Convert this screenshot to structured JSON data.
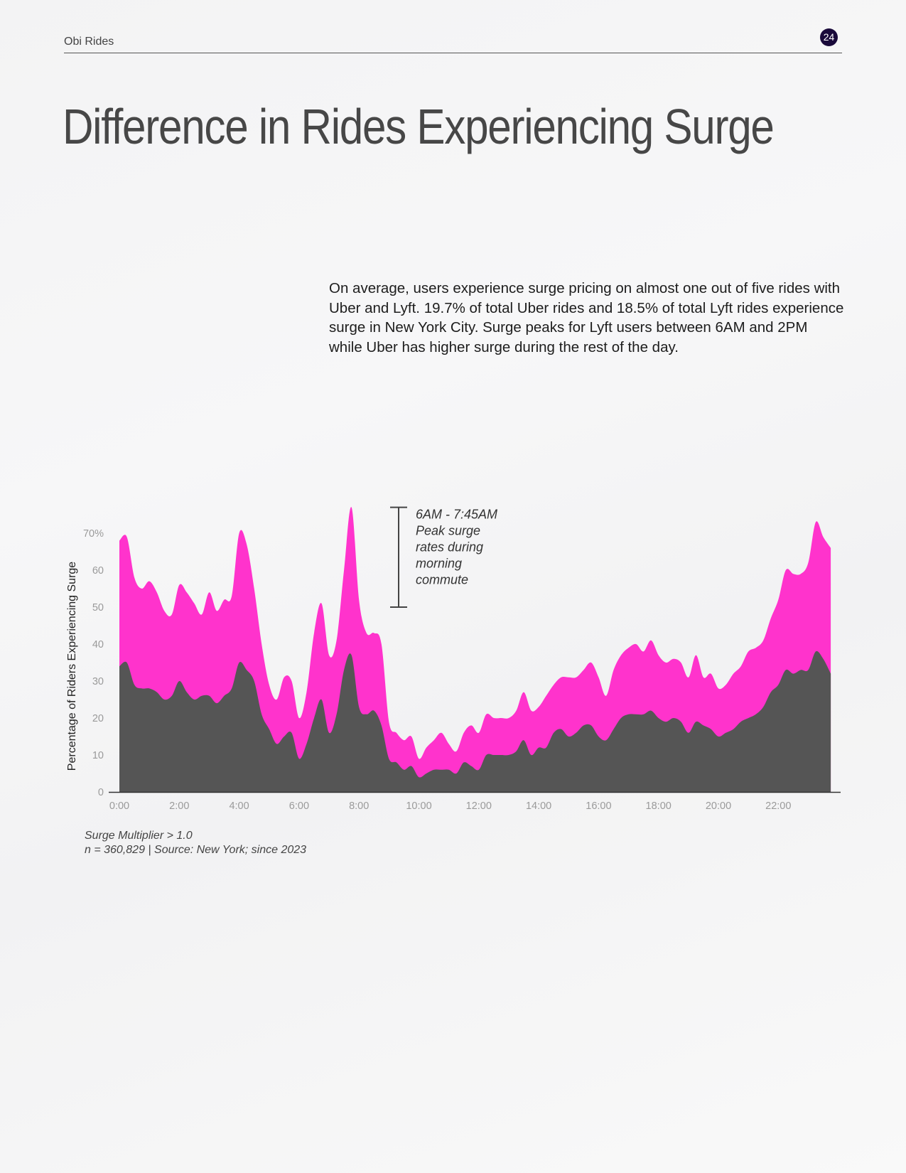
{
  "header": {
    "brand": "Obi Rides",
    "page_number": "24"
  },
  "title": "Difference in Rides Experiencing Surge",
  "body_text": "On average, users experience surge pricing on almost one out of five rides with Uber and Lyft. 19.7% of total Uber rides and 18.5% of total Lyft rides experience surge in New York City. Surge peaks for Lyft users between 6AM and 2PM while Uber has higher surge during the rest of the day.",
  "notes": {
    "line1": "Surge Multiplier > 1.0",
    "line2": "n = 360,829 | Source: New York; since 2023"
  },
  "colors": {
    "upper_area": "#ff33cc",
    "lower_area": "#555555",
    "badge": "#1a0a3a"
  },
  "chart_data": {
    "type": "area",
    "ylabel": "Percentage of Riders Experiencing Surge",
    "xlabel": "",
    "xlim": [
      0,
      24
    ],
    "ylim": [
      0,
      70
    ],
    "x_ticks": [
      0,
      2,
      4,
      6,
      8,
      10,
      12,
      14,
      16,
      18,
      20,
      22
    ],
    "x_tick_labels": [
      "0:00",
      "2:00",
      "4:00",
      "6:00",
      "8:00",
      "10:00",
      "12:00",
      "14:00",
      "16:00",
      "18:00",
      "20:00",
      "22:00"
    ],
    "y_ticks": [
      0,
      10,
      20,
      30,
      40,
      50,
      60,
      70
    ],
    "y_tick_labels": [
      "0",
      "10",
      "20",
      "30",
      "40",
      "50",
      "60",
      "70%"
    ],
    "grid": false,
    "legend": "none",
    "annotation": {
      "x_range_hours": [
        6,
        7.75
      ],
      "y_range": [
        50,
        77
      ],
      "text_lines": [
        "6AM - 7:45AM",
        "Peak surge",
        "rates during",
        "morning",
        "commute"
      ]
    },
    "x": [
      0,
      0.25,
      0.5,
      0.75,
      1,
      1.25,
      1.5,
      1.75,
      2,
      2.25,
      2.5,
      2.75,
      3,
      3.25,
      3.5,
      3.75,
      4,
      4.25,
      4.5,
      4.75,
      5,
      5.25,
      5.5,
      5.75,
      6,
      6.25,
      6.5,
      6.75,
      7,
      7.25,
      7.5,
      7.75,
      8,
      8.25,
      8.5,
      8.75,
      9,
      9.25,
      9.5,
      9.75,
      10,
      10.25,
      10.5,
      10.75,
      11,
      11.25,
      11.5,
      11.75,
      12,
      12.25,
      12.5,
      12.75,
      13,
      13.25,
      13.5,
      13.75,
      14,
      14.25,
      14.5,
      14.75,
      15,
      15.25,
      15.5,
      15.75,
      16,
      16.25,
      16.5,
      16.75,
      17,
      17.25,
      17.5,
      17.75,
      18,
      18.25,
      18.5,
      18.75,
      19,
      19.25,
      19.5,
      19.75,
      20,
      20.25,
      20.5,
      20.75,
      21,
      21.25,
      21.5,
      21.75,
      22,
      22.25,
      22.5,
      22.75,
      23,
      23.25,
      23.5,
      23.75
    ],
    "series": [
      {
        "values": [
          68,
          69,
          58,
          55,
          57,
          54,
          49,
          48,
          56,
          54,
          51,
          48,
          54,
          49,
          52,
          53,
          70,
          67,
          55,
          40,
          29,
          25,
          31,
          30,
          20,
          27,
          43,
          51,
          37,
          41,
          60,
          77,
          52,
          43,
          43,
          40,
          19,
          16,
          14,
          15,
          9,
          12,
          14,
          16,
          13,
          11,
          16,
          18,
          16,
          21,
          20,
          20,
          20,
          22,
          27,
          22,
          23,
          26,
          29,
          31,
          31,
          31,
          33,
          35,
          31,
          26,
          33,
          37,
          39,
          40,
          38,
          41,
          37,
          35,
          36,
          35,
          31,
          37,
          31,
          32,
          28,
          29,
          32,
          34,
          38,
          39,
          41,
          47,
          52,
          60,
          59,
          59,
          62,
          73,
          69,
          66
        ]
      },
      {
        "values": [
          34,
          35,
          29,
          28,
          28,
          27,
          25,
          26,
          30,
          27,
          25,
          26,
          26,
          24,
          26,
          28,
          35,
          33,
          30,
          21,
          17,
          13,
          15,
          16,
          9,
          13,
          20,
          25,
          16,
          21,
          33,
          37,
          23,
          21,
          22,
          18,
          9,
          8,
          6,
          7,
          4,
          5,
          6,
          6,
          6,
          5,
          8,
          7,
          6,
          10,
          10,
          10,
          10,
          11,
          14,
          10,
          12,
          12,
          16,
          17,
          15,
          16,
          18,
          18,
          15,
          14,
          17,
          20,
          21,
          21,
          21,
          22,
          20,
          19,
          20,
          19,
          16,
          19,
          18,
          17,
          15,
          16,
          17,
          19,
          20,
          21,
          23,
          27,
          29,
          33,
          32,
          33,
          33,
          38,
          36,
          32
        ]
      }
    ]
  }
}
